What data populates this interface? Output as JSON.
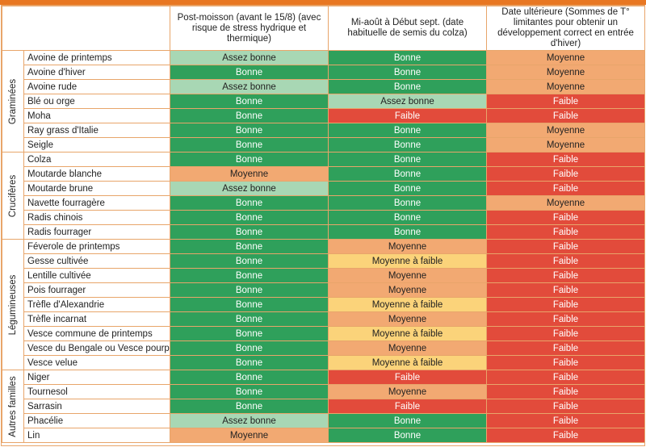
{
  "headers": {
    "col1": "Post-moisson (avant le 15/8) (avec risque de stress hydrique et thermique)",
    "col2": "Mi-août à Début sept. (date habituelle de semis du colza)",
    "col3": "Date ultérieure (Sommes de T° limitantes pour obtenir un développement correct en entrée d'hiver)"
  },
  "colors": {
    "accent_bar": "#e87722",
    "border": "#e8a56a",
    "Bonne": "#2fa05b",
    "Assez bonne": "#a8d7b4",
    "Moyenne": "#f2a972",
    "Moyenne à faible": "#fbd37a",
    "Faible": "#e24b3b"
  },
  "groups": [
    {
      "label": "Graminées",
      "rows": [
        {
          "crop": "Avoine de printemps",
          "values": [
            "Assez bonne",
            "Bonne",
            "Moyenne"
          ]
        },
        {
          "crop": "Avoine d'hiver",
          "values": [
            "Bonne",
            "Bonne",
            "Moyenne"
          ]
        },
        {
          "crop": "Avoine rude",
          "values": [
            "Assez bonne",
            "Bonne",
            "Moyenne"
          ]
        },
        {
          "crop": "Blé ou orge",
          "values": [
            "Bonne",
            "Assez bonne",
            "Faible"
          ]
        },
        {
          "crop": "Moha",
          "values": [
            "Bonne",
            "Faible",
            "Faible"
          ]
        },
        {
          "crop": "Ray grass d'Italie",
          "values": [
            "Bonne",
            "Bonne",
            "Moyenne"
          ]
        },
        {
          "crop": "Seigle",
          "values": [
            "Bonne",
            "Bonne",
            "Moyenne"
          ]
        }
      ]
    },
    {
      "label": "Crucifères",
      "rows": [
        {
          "crop": "Colza",
          "values": [
            "Bonne",
            "Bonne",
            "Faible"
          ]
        },
        {
          "crop": "Moutarde blanche",
          "values": [
            "Moyenne",
            "Bonne",
            "Faible"
          ]
        },
        {
          "crop": "Moutarde brune",
          "values": [
            "Assez bonne",
            "Bonne",
            "Faible"
          ]
        },
        {
          "crop": "Navette fourragère",
          "values": [
            "Bonne",
            "Bonne",
            "Moyenne"
          ]
        },
        {
          "crop": "Radis chinois",
          "values": [
            "Bonne",
            "Bonne",
            "Faible"
          ]
        },
        {
          "crop": "Radis fourrager",
          "values": [
            "Bonne",
            "Bonne",
            "Faible"
          ]
        }
      ]
    },
    {
      "label": "Légumineuses",
      "rows": [
        {
          "crop": "Féverole de printemps",
          "values": [
            "Bonne",
            "Moyenne",
            "Faible"
          ]
        },
        {
          "crop": "Gesse cultivée",
          "values": [
            "Bonne",
            "Moyenne à faible",
            "Faible"
          ]
        },
        {
          "crop": "Lentille cultivée",
          "values": [
            "Bonne",
            "Moyenne",
            "Faible"
          ]
        },
        {
          "crop": "Pois fourrager",
          "values": [
            "Bonne",
            "Moyenne",
            "Faible"
          ]
        },
        {
          "crop": "Trèfle d'Alexandrie",
          "values": [
            "Bonne",
            "Moyenne à faible",
            "Faible"
          ]
        },
        {
          "crop": "Trèfle incarnat",
          "values": [
            "Bonne",
            "Moyenne",
            "Faible"
          ]
        },
        {
          "crop": "Vesce commune de printemps",
          "values": [
            "Bonne",
            "Moyenne à faible",
            "Faible"
          ]
        },
        {
          "crop": "Vesce du Bengale ou Vesce pourpre",
          "values": [
            "Bonne",
            "Moyenne",
            "Faible"
          ]
        },
        {
          "crop": "Vesce velue",
          "values": [
            "Bonne",
            "Moyenne à faible",
            "Faible"
          ]
        }
      ]
    },
    {
      "label": "Autres familles",
      "rows": [
        {
          "crop": "Niger",
          "values": [
            "Bonne",
            "Faible",
            "Faible"
          ]
        },
        {
          "crop": "Tournesol",
          "values": [
            "Bonne",
            "Moyenne",
            "Faible"
          ]
        },
        {
          "crop": "Sarrasin",
          "values": [
            "Bonne",
            "Faible",
            "Faible"
          ]
        },
        {
          "crop": "Phacélie",
          "values": [
            "Assez bonne",
            "Bonne",
            "Faible"
          ]
        },
        {
          "crop": "Lin",
          "values": [
            "Moyenne",
            "Bonne",
            "Faible"
          ]
        }
      ]
    }
  ]
}
